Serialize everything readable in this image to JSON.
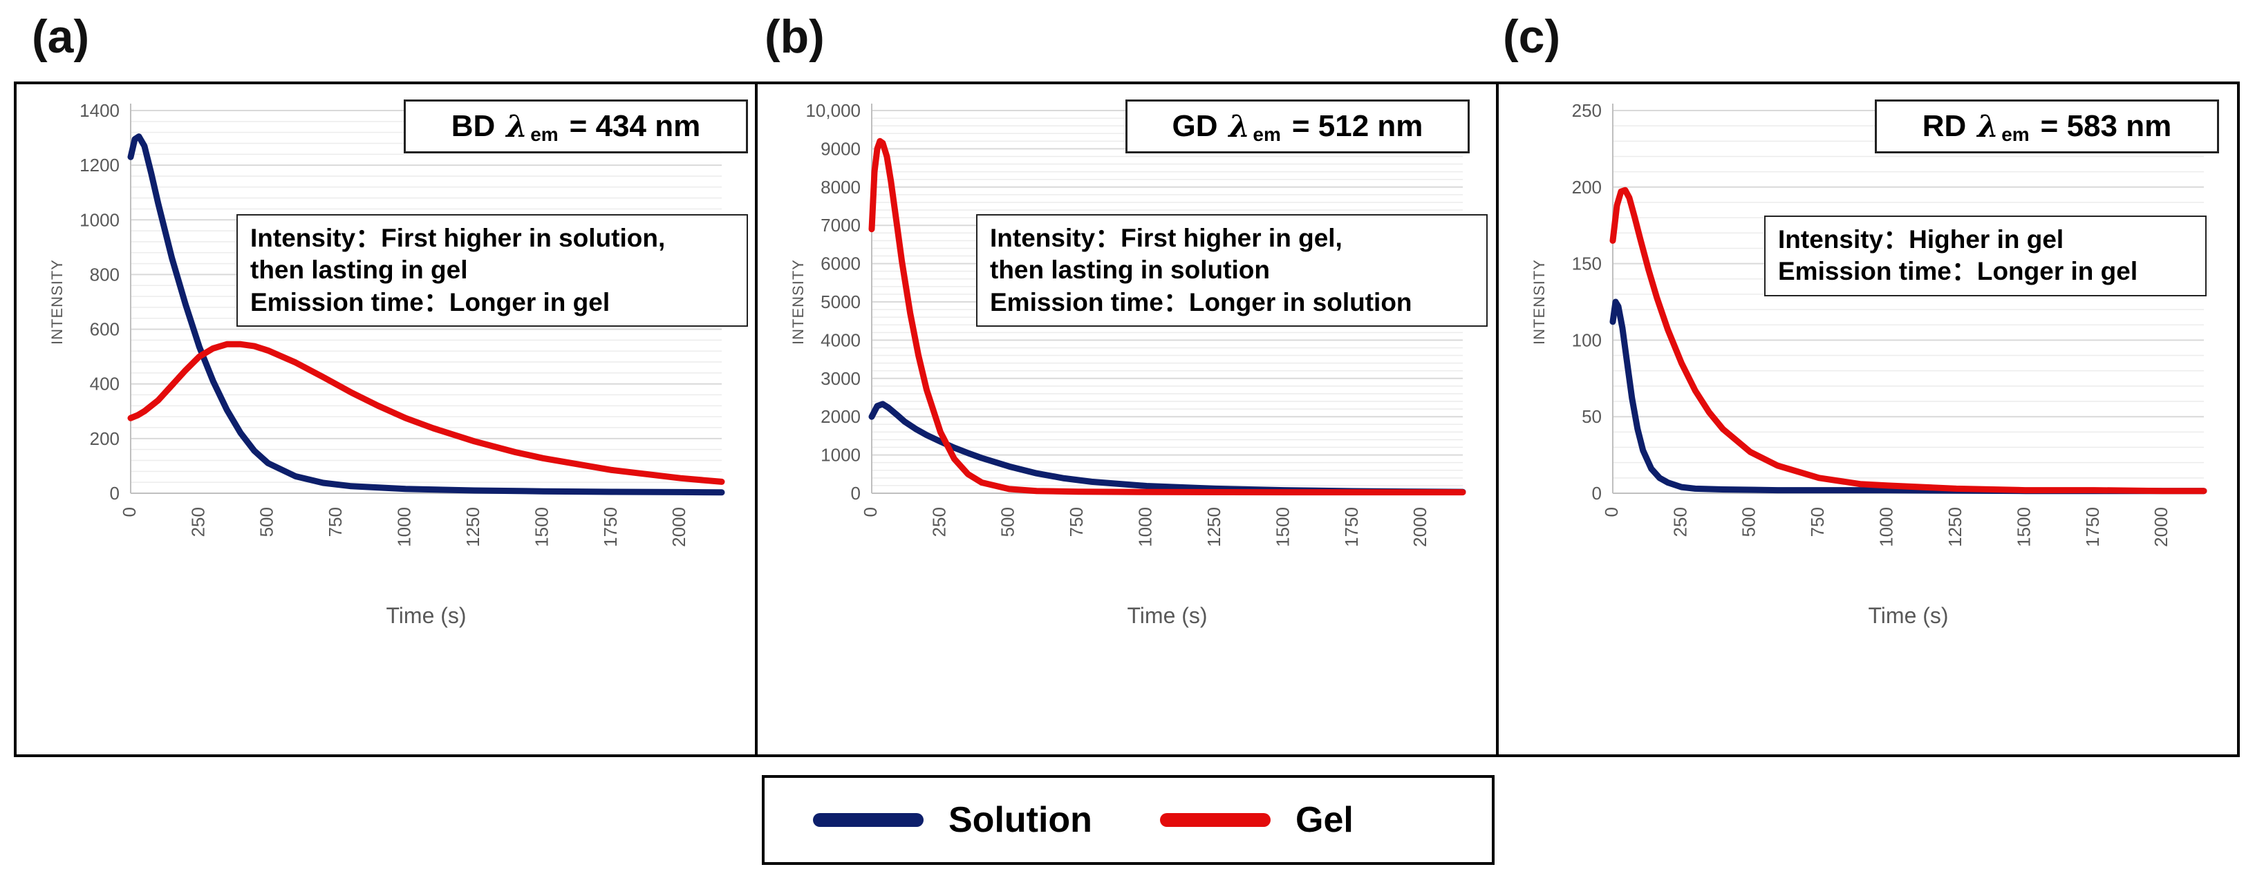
{
  "figure": {
    "panel_labels": [
      "(a)",
      "(b)",
      "(c)"
    ],
    "legend": [
      {
        "label": "Solution",
        "color": "#0d1f6b"
      },
      {
        "label": "Gel",
        "color": "#e30b0b"
      }
    ]
  },
  "chart_data": [
    {
      "type": "line",
      "panel": "(a)",
      "title": {
        "prefix": "BD",
        "lambda": "λ",
        "sub": "em",
        "suffix": "= 434 nm"
      },
      "notes": [
        "Intensity：First higher in solution,",
        "then lasting in gel",
        "Emission time：Longer in  gel"
      ],
      "xlabel": "Time (s)",
      "ylabel": "INTENSITY",
      "xlim": [
        0,
        2150
      ],
      "ylim": [
        0,
        1400
      ],
      "xticks": [
        0,
        250,
        500,
        750,
        1000,
        1250,
        1500,
        1750,
        2000
      ],
      "yticks": [
        0,
        200,
        400,
        600,
        800,
        1000,
        1200,
        1400
      ],
      "ytick_labels": [
        "0",
        "200",
        "400",
        "600",
        "800",
        "1000",
        "1200",
        "1400"
      ],
      "series": [
        {
          "name": "Solution",
          "color": "#0d1f6b",
          "x": [
            0,
            15,
            30,
            50,
            75,
            100,
            150,
            200,
            250,
            300,
            350,
            400,
            450,
            500,
            600,
            700,
            800,
            1000,
            1250,
            1500,
            1750,
            2000,
            2150
          ],
          "y": [
            1230,
            1295,
            1305,
            1270,
            1170,
            1060,
            860,
            690,
            535,
            410,
            305,
            220,
            155,
            110,
            62,
            38,
            26,
            16,
            10,
            7,
            5,
            4,
            3
          ]
        },
        {
          "name": "Gel",
          "color": "#e30b0b",
          "x": [
            0,
            25,
            50,
            100,
            150,
            200,
            250,
            300,
            350,
            400,
            450,
            500,
            600,
            700,
            800,
            900,
            1000,
            1100,
            1250,
            1400,
            1500,
            1750,
            2000,
            2150
          ],
          "y": [
            275,
            285,
            300,
            340,
            395,
            450,
            500,
            530,
            545,
            545,
            538,
            522,
            478,
            425,
            370,
            320,
            275,
            238,
            190,
            150,
            128,
            85,
            55,
            42
          ]
        }
      ]
    },
    {
      "type": "line",
      "panel": "(b)",
      "title": {
        "prefix": "GD",
        "lambda": "λ",
        "sub": "em",
        "suffix": "= 512 nm"
      },
      "notes": [
        "Intensity：First higher in gel,",
        "then lasting in solution",
        "Emission time：Longer in solution"
      ],
      "xlabel": "Time (s)",
      "ylabel": "INTENSITY",
      "xlim": [
        0,
        2150
      ],
      "ylim": [
        0,
        10000
      ],
      "xticks": [
        0,
        250,
        500,
        750,
        1000,
        1250,
        1500,
        1750,
        2000
      ],
      "yticks": [
        0,
        1000,
        2000,
        3000,
        4000,
        5000,
        6000,
        7000,
        8000,
        9000,
        10000
      ],
      "ytick_labels": [
        "0",
        "1000",
        "2000",
        "3000",
        "4000",
        "5000",
        "6000",
        "7000",
        "8000",
        "9000",
        "10,000"
      ],
      "series": [
        {
          "name": "Solution",
          "color": "#0d1f6b",
          "x": [
            0,
            20,
            40,
            60,
            90,
            120,
            160,
            200,
            250,
            300,
            350,
            400,
            500,
            600,
            700,
            800,
            1000,
            1250,
            1500,
            1750,
            2000,
            2150
          ],
          "y": [
            2000,
            2280,
            2330,
            2240,
            2060,
            1870,
            1680,
            1520,
            1350,
            1190,
            1050,
            920,
            700,
            520,
            390,
            300,
            190,
            120,
            80,
            55,
            40,
            35
          ]
        },
        {
          "name": "Gel",
          "color": "#e30b0b",
          "x": [
            0,
            10,
            20,
            30,
            40,
            55,
            70,
            90,
            110,
            140,
            170,
            200,
            250,
            300,
            350,
            400,
            500,
            600,
            750,
            1000,
            1500,
            2150
          ],
          "y": [
            6900,
            8400,
            9000,
            9200,
            9150,
            8800,
            8150,
            7100,
            6050,
            4700,
            3600,
            2700,
            1600,
            900,
            500,
            280,
            110,
            60,
            40,
            30,
            25,
            25
          ]
        }
      ]
    },
    {
      "type": "line",
      "panel": "(c)",
      "title": {
        "prefix": "RD",
        "lambda": "λ",
        "sub": "em",
        "suffix": "= 583 nm"
      },
      "notes": [
        "Intensity：Higher in gel",
        "Emission time：Longer in gel"
      ],
      "xlabel": "Time (s)",
      "ylabel": "INTENSITY",
      "xlim": [
        0,
        2150
      ],
      "ylim": [
        0,
        250
      ],
      "xticks": [
        0,
        250,
        500,
        750,
        1000,
        1250,
        1500,
        1750,
        2000
      ],
      "yticks": [
        0,
        50,
        100,
        150,
        200,
        250
      ],
      "ytick_labels": [
        "0",
        "50",
        "100",
        "150",
        "200",
        "250"
      ],
      "series": [
        {
          "name": "Solution",
          "color": "#0d1f6b",
          "x": [
            0,
            10,
            20,
            35,
            50,
            70,
            90,
            110,
            140,
            170,
            200,
            250,
            300,
            400,
            600,
            1000,
            1500,
            2150
          ],
          "y": [
            112,
            125,
            122,
            108,
            88,
            62,
            42,
            28,
            16,
            10,
            7,
            4,
            3,
            2.5,
            2,
            2,
            1.5,
            1.5
          ]
        },
        {
          "name": "Gel",
          "color": "#e30b0b",
          "x": [
            0,
            15,
            30,
            45,
            60,
            80,
            100,
            130,
            160,
            200,
            250,
            300,
            350,
            400,
            500,
            600,
            750,
            900,
            1000,
            1250,
            1500,
            1750,
            2000,
            2150
          ],
          "y": [
            165,
            188,
            197,
            198,
            193,
            180,
            166,
            146,
            128,
            107,
            85,
            67,
            53,
            42,
            27,
            18,
            10,
            6,
            5,
            3,
            2,
            2,
            1.5,
            1.5
          ]
        }
      ]
    }
  ]
}
